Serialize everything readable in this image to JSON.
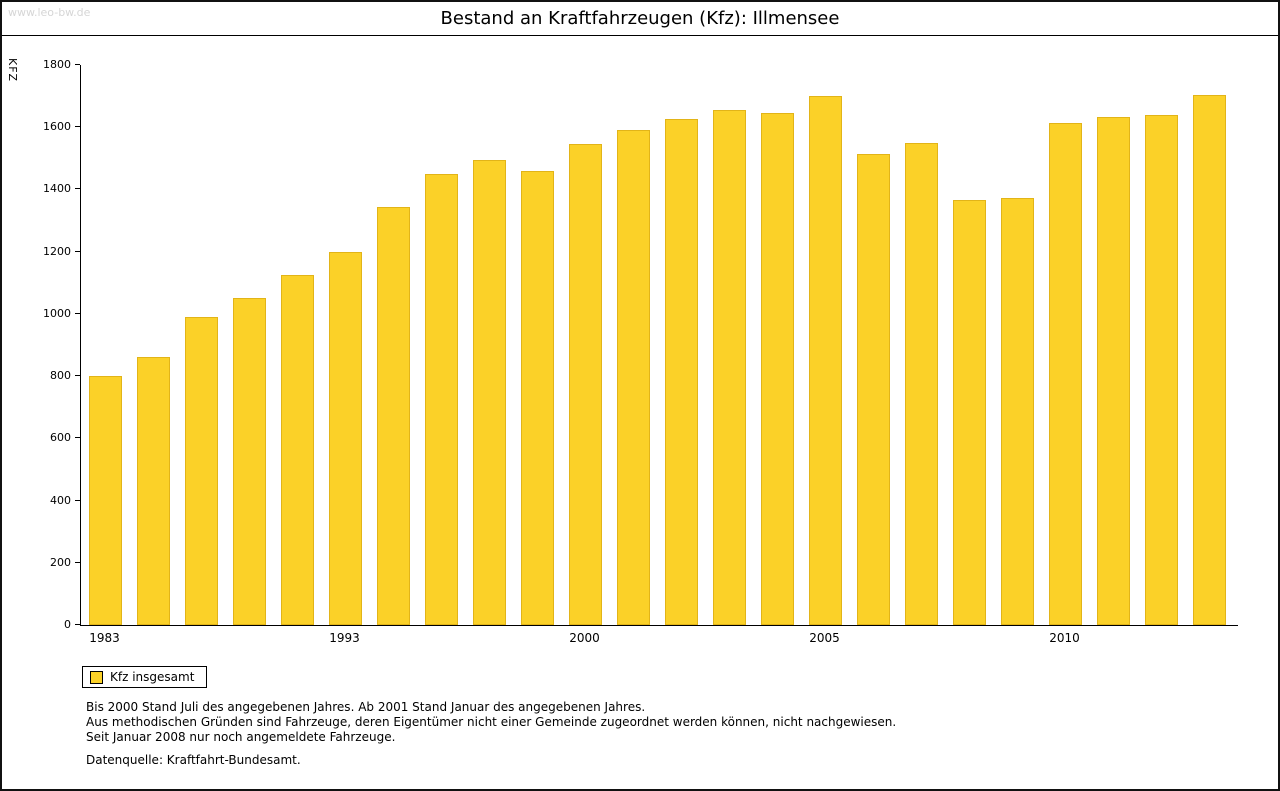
{
  "watermark": "www.leo-bw.de",
  "chart_data": {
    "type": "bar",
    "title": "Bestand an Kraftfahrzeugen (Kfz): Illmensee",
    "xlabel": "",
    "ylabel": "KFZ",
    "ylim": [
      0,
      1800
    ],
    "ytick_step": 200,
    "grid": false,
    "legend_position": "bottom-left",
    "bar_color": "#FBD128",
    "series": [
      {
        "name": "Kfz insgesamt",
        "values": [
          800,
          860,
          990,
          1050,
          1125,
          1200,
          1345,
          1450,
          1495,
          1460,
          1545,
          1590,
          1625,
          1655,
          1645,
          1700,
          1515,
          1548,
          1365,
          1372,
          1615,
          1632,
          1640,
          1705
        ]
      }
    ],
    "x_tick_indices": [
      0,
      5,
      10,
      15,
      20
    ],
    "x_tick_labels": [
      "1983",
      "1993",
      "2000",
      "2005",
      "2010"
    ]
  },
  "notes": [
    "Bis 2000 Stand Juli des angegebenen Jahres. Ab 2001 Stand Januar des angegebenen Jahres.",
    "Aus methodischen Gründen sind Fahrzeuge, deren Eigentümer nicht einer Gemeinde zugeordnet werden können, nicht nachgewiesen.",
    "Seit Januar 2008 nur noch angemeldete Fahrzeuge."
  ],
  "source": "Datenquelle: Kraftfahrt-Bundesamt."
}
